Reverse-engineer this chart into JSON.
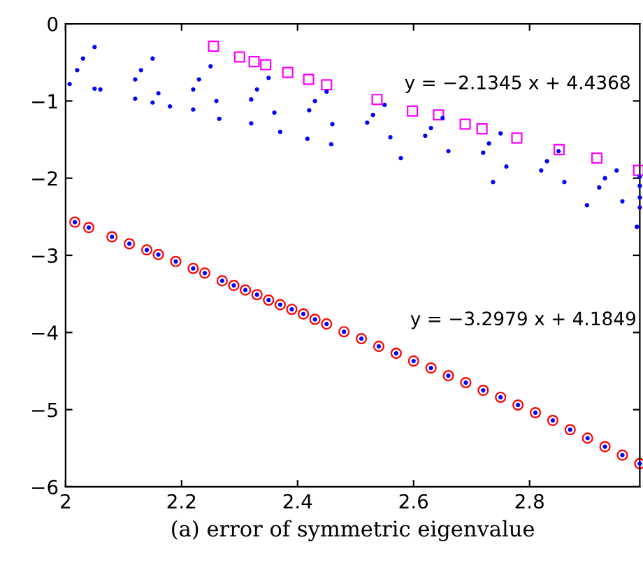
{
  "chart_data": {
    "type": "scatter",
    "xlabel": "(a) error of symmetric eigenvalue",
    "xlim": [
      2,
      2.99
    ],
    "ylim": [
      -6,
      0
    ],
    "xticks": [
      2,
      2.2,
      2.4,
      2.6,
      2.8
    ],
    "yticks": [
      -6,
      -5,
      -4,
      -3,
      -2,
      -1,
      0
    ],
    "grid": false,
    "legend": false,
    "series": [
      {
        "color": "#0000ff",
        "marker": "dot",
        "x": [
          2.007,
          2.05,
          2.12,
          2.15,
          2.18,
          2.22,
          2.265,
          2.32,
          2.37,
          2.417,
          2.458,
          2.578,
          2.737,
          2.899,
          2.985,
          2.06,
          2.16,
          2.26,
          2.36,
          2.46,
          2.56,
          2.66,
          2.76,
          2.86,
          2.96,
          2.99,
          2.02,
          2.12,
          2.22,
          2.32,
          2.42,
          2.52,
          2.62,
          2.72,
          2.82,
          2.92,
          2.99,
          2.03,
          2.13,
          2.23,
          2.33,
          2.43,
          2.53,
          2.63,
          2.73,
          2.83,
          2.93,
          2.99,
          2.05,
          2.15,
          2.25,
          2.35,
          2.45,
          2.55,
          2.65,
          2.75,
          2.85,
          2.95,
          2.99
        ],
        "values": [
          -0.78,
          -0.84,
          -0.97,
          -1.02,
          -1.07,
          -1.11,
          -1.23,
          -1.29,
          -1.4,
          -1.49,
          -1.56,
          -1.74,
          -2.05,
          -2.35,
          -2.63,
          -0.85,
          -0.9,
          -1.0,
          -1.15,
          -1.3,
          -1.47,
          -1.65,
          -1.85,
          -2.05,
          -2.3,
          -2.38,
          -0.6,
          -0.72,
          -0.85,
          -0.98,
          -1.12,
          -1.28,
          -1.45,
          -1.67,
          -1.9,
          -2.12,
          -2.25,
          -0.45,
          -0.6,
          -0.72,
          -0.85,
          -1.0,
          -1.18,
          -1.35,
          -1.55,
          -1.78,
          -2.0,
          -2.1,
          -0.3,
          -0.45,
          -0.55,
          -0.7,
          -0.88,
          -1.05,
          -1.22,
          -1.42,
          -1.65,
          -1.9,
          -1.98
        ]
      },
      {
        "color": "#ff00ff",
        "marker": "square",
        "x": [
          2.255,
          2.3,
          2.325,
          2.345,
          2.383,
          2.419,
          2.45,
          2.537,
          2.598,
          2.643,
          2.689,
          2.718,
          2.778,
          2.851,
          2.916,
          2.988
        ],
        "values": [
          -0.29,
          -0.43,
          -0.49,
          -0.53,
          -0.63,
          -0.72,
          -0.79,
          -0.98,
          -1.13,
          -1.18,
          -1.3,
          -1.36,
          -1.48,
          -1.63,
          -1.74,
          -1.9
        ]
      },
      {
        "color": "#ff0000",
        "marker": "circle",
        "x": [
          2.016,
          2.04,
          2.08,
          2.11,
          2.14,
          2.16,
          2.19,
          2.22,
          2.24,
          2.27,
          2.29,
          2.31,
          2.33,
          2.35,
          2.37,
          2.39,
          2.41,
          2.43,
          2.45,
          2.48,
          2.51,
          2.54,
          2.57,
          2.6,
          2.63,
          2.66,
          2.69,
          2.72,
          2.75,
          2.78,
          2.81,
          2.84,
          2.87,
          2.9,
          2.93,
          2.96,
          2.99
        ],
        "values": [
          -2.57,
          -2.64,
          -2.76,
          -2.85,
          -2.93,
          -2.99,
          -3.08,
          -3.17,
          -3.23,
          -3.33,
          -3.39,
          -3.45,
          -3.51,
          -3.58,
          -3.64,
          -3.7,
          -3.76,
          -3.83,
          -3.89,
          -3.99,
          -4.08,
          -4.18,
          -4.27,
          -4.37,
          -4.46,
          -4.56,
          -4.65,
          -4.75,
          -4.84,
          -4.94,
          -5.04,
          -5.14,
          -5.26,
          -5.37,
          -5.48,
          -5.59,
          -5.7
        ]
      },
      {
        "color": "#0000ff",
        "marker": "dot",
        "x": [
          2.016,
          2.04,
          2.08,
          2.11,
          2.14,
          2.16,
          2.19,
          2.22,
          2.24,
          2.27,
          2.29,
          2.31,
          2.33,
          2.35,
          2.37,
          2.39,
          2.41,
          2.43,
          2.45,
          2.48,
          2.51,
          2.54,
          2.57,
          2.6,
          2.63,
          2.66,
          2.69,
          2.72,
          2.75,
          2.78,
          2.81,
          2.84,
          2.87,
          2.9,
          2.93,
          2.96,
          2.99
        ],
        "values": [
          -2.57,
          -2.64,
          -2.76,
          -2.85,
          -2.93,
          -2.99,
          -3.08,
          -3.17,
          -3.23,
          -3.33,
          -3.39,
          -3.45,
          -3.51,
          -3.58,
          -3.64,
          -3.7,
          -3.76,
          -3.83,
          -3.89,
          -3.99,
          -4.08,
          -4.18,
          -4.27,
          -4.37,
          -4.46,
          -4.56,
          -4.65,
          -4.75,
          -4.84,
          -4.94,
          -5.04,
          -5.14,
          -5.26,
          -5.37,
          -5.48,
          -5.59,
          -5.7
        ]
      }
    ],
    "annotations": [
      "y = −2.1345 x + 4.4368",
      "y = −3.2979 x + 4.1849"
    ]
  }
}
